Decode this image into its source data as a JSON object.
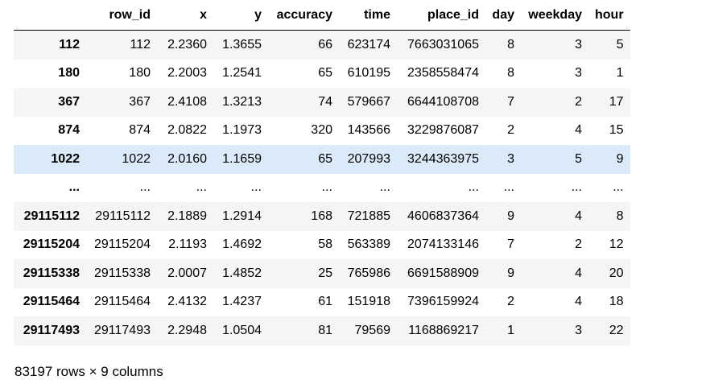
{
  "table": {
    "columns": [
      "",
      "row_id",
      "x",
      "y",
      "accuracy",
      "time",
      "place_id",
      "day",
      "weekday",
      "hour"
    ],
    "rows": [
      {
        "index": "112",
        "cells": [
          "112",
          "2.2360",
          "1.3655",
          "66",
          "623174",
          "7663031065",
          "8",
          "3",
          "5"
        ]
      },
      {
        "index": "180",
        "cells": [
          "180",
          "2.2003",
          "1.2541",
          "65",
          "610195",
          "2358558474",
          "8",
          "3",
          "1"
        ]
      },
      {
        "index": "367",
        "cells": [
          "367",
          "2.4108",
          "1.3213",
          "74",
          "579667",
          "6644108708",
          "7",
          "2",
          "17"
        ]
      },
      {
        "index": "874",
        "cells": [
          "874",
          "2.0822",
          "1.1973",
          "320",
          "143566",
          "3229876087",
          "2",
          "4",
          "15"
        ]
      },
      {
        "index": "1022",
        "cells": [
          "1022",
          "2.0160",
          "1.1659",
          "65",
          "207993",
          "3244363975",
          "3",
          "5",
          "9"
        ],
        "highlighted": true
      },
      {
        "index": "...",
        "cells": [
          "...",
          "...",
          "...",
          "...",
          "...",
          "...",
          "...",
          "...",
          "..."
        ],
        "ellipsis": true
      },
      {
        "index": "29115112",
        "cells": [
          "29115112",
          "2.1889",
          "1.2914",
          "168",
          "721885",
          "4606837364",
          "9",
          "4",
          "8"
        ]
      },
      {
        "index": "29115204",
        "cells": [
          "29115204",
          "2.1193",
          "1.4692",
          "58",
          "563389",
          "2074133146",
          "7",
          "2",
          "12"
        ]
      },
      {
        "index": "29115338",
        "cells": [
          "29115338",
          "2.0007",
          "1.4852",
          "25",
          "765986",
          "6691588909",
          "9",
          "4",
          "20"
        ]
      },
      {
        "index": "29115464",
        "cells": [
          "29115464",
          "2.4132",
          "1.4237",
          "61",
          "151918",
          "7396159924",
          "2",
          "4",
          "18"
        ]
      },
      {
        "index": "29117493",
        "cells": [
          "29117493",
          "2.2948",
          "1.0504",
          "81",
          "79569",
          "1168869217",
          "1",
          "3",
          "22"
        ]
      }
    ]
  },
  "footer": {
    "shape_text": "83197 rows × 9 columns"
  },
  "colors": {
    "stripe": "#f5f5f5",
    "hover": "#dbeaf8",
    "header_rule": "#000000"
  }
}
